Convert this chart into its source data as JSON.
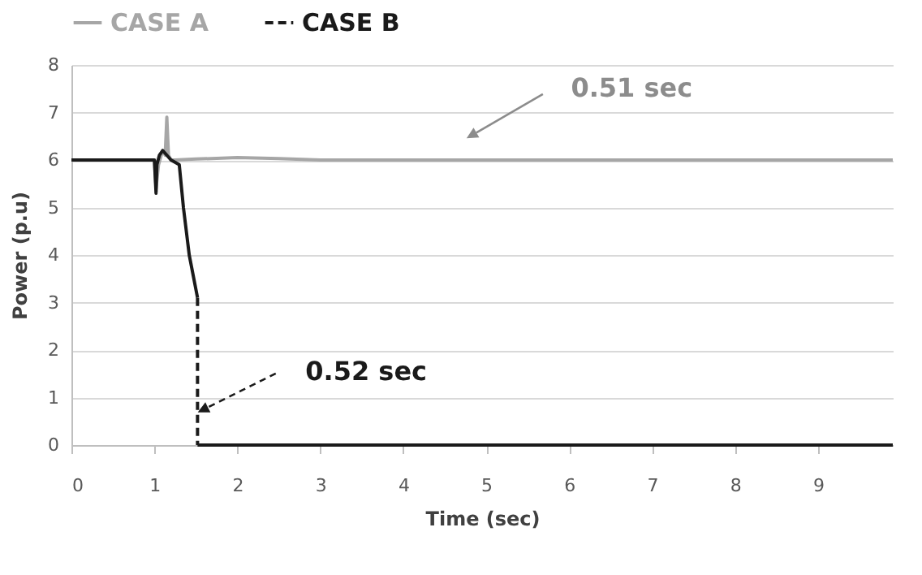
{
  "chart_data": {
    "type": "line",
    "xlabel": "Time (sec)",
    "ylabel": "Power (p.u)",
    "xlim": [
      0,
      9.9
    ],
    "xticks": [
      0,
      1,
      2,
      3,
      4,
      5,
      6,
      7,
      8,
      9
    ],
    "ylim": [
      0,
      8
    ],
    "yticks": [
      0,
      1,
      2,
      3,
      4,
      5,
      6,
      7,
      8
    ],
    "grid": "y",
    "legend": "top",
    "marker": "none",
    "series": [
      {
        "name": "CASE A",
        "color": "#a6a6a6",
        "line_style": "solid",
        "x": [
          0,
          1.0,
          1.02,
          1.05,
          1.1,
          1.13,
          1.15,
          1.17,
          1.2,
          1.25,
          1.5,
          2.0,
          2.5,
          3.0,
          9.9
        ],
        "values": [
          6,
          6,
          5.4,
          5.9,
          6.2,
          6.1,
          6.9,
          6.1,
          6.0,
          6.0,
          6.02,
          6.05,
          6.03,
          6.0,
          6.0
        ]
      },
      {
        "color": "#1a1a1a",
        "line_style": "solid",
        "x": [
          0,
          1.0,
          1.02,
          1.03,
          1.06,
          1.1,
          1.2,
          1.3,
          1.35,
          1.42,
          1.52
        ],
        "values": [
          6,
          6,
          5.3,
          5.9,
          6.1,
          6.2,
          6.0,
          5.9,
          5.0,
          4.0,
          3.1
        ]
      },
      {
        "name": "CASE B",
        "color": "#1a1a1a",
        "line_style": "dashed",
        "x": [
          1.52,
          1.52
        ],
        "values": [
          3.1,
          0
        ]
      },
      {
        "color": "#1a1a1a",
        "line_style": "solid",
        "x": [
          1.52,
          9.9
        ],
        "values": [
          0,
          0
        ]
      }
    ],
    "annotations": [
      "0.51 sec",
      "0.52 sec"
    ]
  }
}
